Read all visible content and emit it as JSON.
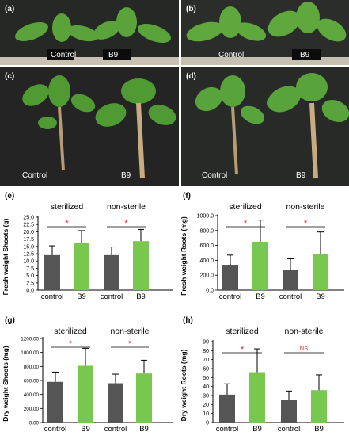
{
  "photos": {
    "a": {
      "label": "(a)",
      "captions": [
        "Control",
        "B9"
      ]
    },
    "b": {
      "label": "(b)",
      "captions": [
        "Control",
        "B9"
      ]
    },
    "c": {
      "label": "(c)",
      "captions": [
        "Control",
        "B9"
      ]
    },
    "d": {
      "label": "(d)",
      "captions": [
        "Control",
        "B9"
      ]
    }
  },
  "colors": {
    "control": "#555555",
    "b9": "#78c850",
    "significance": "#e8202a",
    "ns": "#e8202a"
  },
  "chart_data": [
    {
      "panel": "(e)",
      "type": "bar",
      "ylabel": "Fresh weight Shoots (g)",
      "yticks": [
        "0.0",
        "2.5",
        "5.0",
        "7.5",
        "10.0",
        "12.5",
        "15.0",
        "17.5",
        "20.0",
        "22.5",
        "25.0"
      ],
      "ylim": [
        0,
        25
      ],
      "categories": [
        "control",
        "B9",
        "control",
        "B9"
      ],
      "groups": [
        "sterilized",
        "non-sterile"
      ],
      "values": [
        12.0,
        16.2,
        12.0,
        16.8
      ],
      "errors": [
        3.2,
        4.2,
        2.8,
        4.0
      ],
      "significance": [
        "*",
        "*"
      ]
    },
    {
      "panel": "(f)",
      "type": "bar",
      "ylabel": "Fresh weight Roots (mg)",
      "yticks": [
        "0.0",
        "200.0",
        "400.0",
        "600.0",
        "800.0",
        "1000.0"
      ],
      "ylim": [
        0,
        1000
      ],
      "categories": [
        "control",
        "B9",
        "control",
        "B9"
      ],
      "groups": [
        "sterilized",
        "non-sterile"
      ],
      "values": [
        340,
        650,
        270,
        480
      ],
      "errors": [
        130,
        290,
        150,
        300
      ],
      "significance": [
        "*",
        "*"
      ]
    },
    {
      "panel": "(g)",
      "type": "bar",
      "ylabel": "Dry weight Shoots (mg)",
      "yticks": [
        "0.00",
        "200.00",
        "400.00",
        "600.00",
        "800.00",
        "1000.00",
        "1200.00"
      ],
      "ylim": [
        0,
        1200
      ],
      "categories": [
        "control",
        "B9",
        "control",
        "B9"
      ],
      "groups": [
        "sterilized",
        "non-sterile"
      ],
      "values": [
        580,
        810,
        560,
        700
      ],
      "errors": [
        140,
        250,
        130,
        190
      ],
      "significance": [
        "*",
        "*"
      ]
    },
    {
      "panel": "(h)",
      "type": "bar",
      "ylabel": "Dry weight Roots (mg)",
      "yticks": [
        "0",
        "10",
        "20",
        "30",
        "40",
        "50",
        "60",
        "70",
        "80",
        "90"
      ],
      "ylim": [
        0,
        90
      ],
      "categories": [
        "control",
        "B9",
        "control",
        "B9"
      ],
      "groups": [
        "sterilized",
        "non-sterile"
      ],
      "values": [
        31,
        56,
        25,
        36
      ],
      "errors": [
        12,
        26,
        10,
        17
      ],
      "significance": [
        "*",
        "NS"
      ]
    }
  ]
}
